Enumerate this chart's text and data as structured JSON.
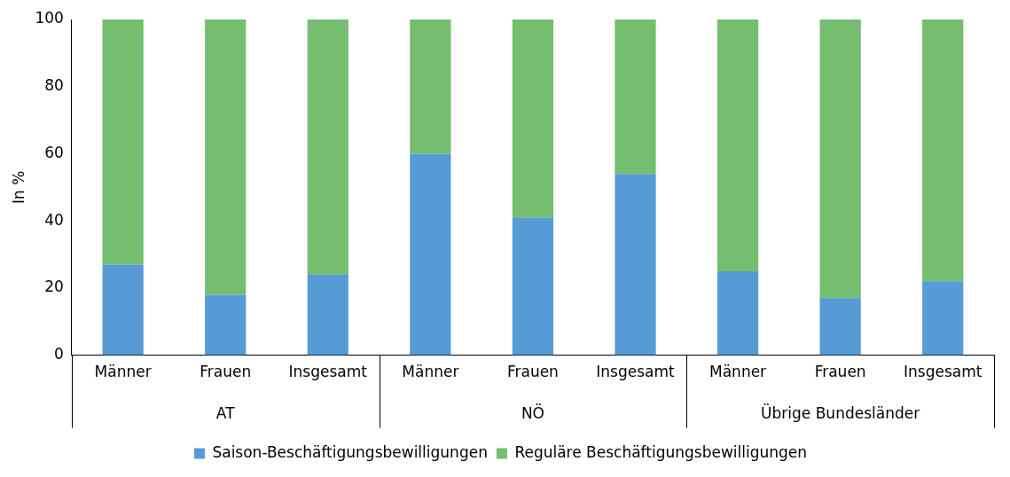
{
  "chart_data": {
    "type": "bar",
    "ylabel": "In %",
    "categories": [
      "Männer",
      "Frauen",
      "Insgesamt",
      "Männer",
      "Frauen",
      "Insgesamt",
      "Männer",
      "Frauen",
      "Insgesamt"
    ],
    "annotations": [
      "AT",
      "NÖ",
      "Übrige Bundesländer"
    ],
    "stacked": true,
    "ylim": [
      0,
      100
    ],
    "yticks": [
      0,
      20,
      40,
      60,
      80,
      100
    ],
    "grid": false,
    "legend": "bottom",
    "series": [
      {
        "name": "Saison-Beschäftigungsbewilligungen",
        "color": "#569bd6",
        "values": [
          27,
          18,
          24,
          60,
          41,
          54,
          25,
          17,
          22
        ]
      },
      {
        "name": "Reguläre Beschäftigungsbewilligungen",
        "color": "#75bd6f",
        "values": [
          73,
          82,
          76,
          40,
          59,
          46,
          75,
          83,
          78
        ]
      }
    ]
  }
}
